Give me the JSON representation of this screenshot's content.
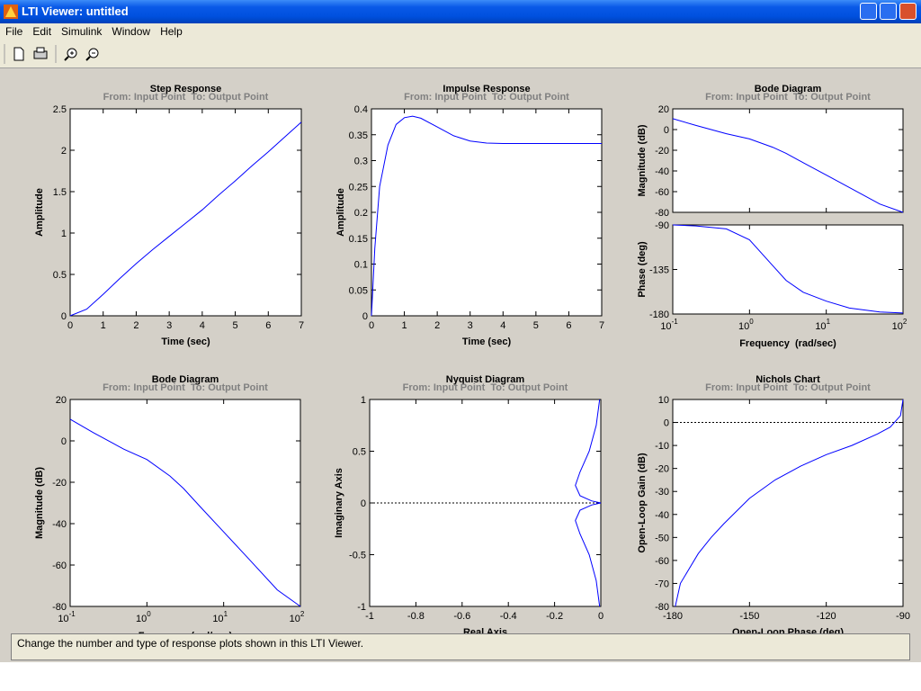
{
  "window": {
    "title": "LTI Viewer: untitled"
  },
  "menu": [
    "File",
    "Edit",
    "Simulink",
    "Window",
    "Help"
  ],
  "status": "Change the number and type of response plots shown in this LTI Viewer.",
  "chart_data": [
    {
      "type": "line",
      "title": "Step Response",
      "subtitle": "From: Input Point  To: Output Point",
      "xlabel": "Time (sec)",
      "ylabel": "Amplitude",
      "color": "#0000ff",
      "x": [
        0,
        0.5,
        1,
        1.5,
        2,
        2.5,
        3,
        3.5,
        4,
        4.5,
        5,
        5.5,
        6,
        6.5,
        7
      ],
      "values": [
        0,
        0.08,
        0.26,
        0.45,
        0.63,
        0.8,
        0.96,
        1.12,
        1.28,
        1.46,
        1.63,
        1.81,
        1.98,
        2.16,
        2.34
      ],
      "xlim": [
        0,
        7
      ],
      "ylim": [
        0,
        2.5
      ],
      "xticks": [
        0,
        1,
        2,
        3,
        4,
        5,
        6,
        7
      ],
      "yticks": [
        0,
        0.5,
        1,
        1.5,
        2,
        2.5
      ]
    },
    {
      "type": "line",
      "title": "Impulse Response",
      "subtitle": "From: Input Point  To: Output Point",
      "xlabel": "Time (sec)",
      "ylabel": "Amplitude",
      "color": "#0000ff",
      "zero_line": true,
      "x": [
        0,
        0.1,
        0.25,
        0.5,
        0.75,
        1,
        1.25,
        1.5,
        2,
        2.5,
        3,
        3.5,
        4,
        5,
        6,
        7
      ],
      "values": [
        0,
        0.13,
        0.25,
        0.33,
        0.37,
        0.383,
        0.386,
        0.382,
        0.365,
        0.348,
        0.338,
        0.334,
        0.333,
        0.333,
        0.333,
        0.333
      ],
      "xlim": [
        0,
        7
      ],
      "ylim": [
        0,
        0.4
      ],
      "xticks": [
        0,
        1,
        2,
        3,
        4,
        5,
        6,
        7
      ],
      "yticks": [
        0,
        0.05,
        0.1,
        0.15,
        0.2,
        0.25,
        0.3,
        0.35,
        0.4
      ]
    },
    {
      "type": "bode",
      "title": "Bode Diagram",
      "subtitle": "From: Input Point  To: Output Point",
      "xlabel": "Frequency  (rad/sec)",
      "color": "#0000ff",
      "xscale": "log",
      "x": [
        0.1,
        0.2,
        0.5,
        1,
        2,
        3,
        5,
        10,
        20,
        50,
        100
      ],
      "xlim": [
        0.1,
        100
      ],
      "xticks": [
        {
          "value": 0.1,
          "label": "10",
          "exponent": "-1"
        },
        {
          "value": 1,
          "label": "10",
          "exponent": "0"
        },
        {
          "value": 10,
          "label": "10",
          "exponent": "1"
        },
        {
          "value": 100,
          "label": "10",
          "exponent": "2"
        }
      ],
      "panels": [
        {
          "ylabel": "Magnitude (dB)",
          "ylim": [
            -80,
            20
          ],
          "yticks": [
            -80,
            -60,
            -40,
            -20,
            0,
            20
          ],
          "values": [
            10.5,
            4,
            -4,
            -9,
            -17,
            -23,
            -32,
            -44,
            -56,
            -72,
            -80
          ]
        },
        {
          "ylabel": "Phase (deg)",
          "ylim": [
            -180,
            -90
          ],
          "yticks": [
            -180,
            -135,
            -90
          ],
          "values": [
            -90,
            -91,
            -94,
            -105,
            -131,
            -146,
            -158,
            -167,
            -174,
            -178,
            -179
          ]
        }
      ]
    },
    {
      "type": "line",
      "title": "Bode Diagram",
      "subtitle": "From: Input Point  To: Output Point",
      "xlabel": "Frequency (rad/sec)",
      "ylabel": "Magnitude (dB)",
      "color": "#0000ff",
      "xscale": "log",
      "x": [
        0.1,
        0.2,
        0.5,
        1,
        2,
        3,
        5,
        10,
        20,
        50,
        100
      ],
      "values": [
        10.5,
        4,
        -4,
        -9,
        -17,
        -23,
        -32,
        -44,
        -56,
        -72,
        -80
      ],
      "xlim": [
        0.1,
        100
      ],
      "ylim": [
        -80,
        20
      ],
      "xticks": [
        {
          "value": 0.1,
          "label": "10",
          "exponent": "-1"
        },
        {
          "value": 1,
          "label": "10",
          "exponent": "0"
        },
        {
          "value": 10,
          "label": "10",
          "exponent": "1"
        },
        {
          "value": 100,
          "label": "10",
          "exponent": "2"
        }
      ],
      "yticks": [
        -80,
        -60,
        -40,
        -20,
        0,
        20
      ]
    },
    {
      "type": "line",
      "title": "Nyquist Diagram",
      "subtitle": "From: Input Point  To: Output Point",
      "xlabel": "Real Axis",
      "ylabel": "Imaginary Axis",
      "color": "#0000ff",
      "zero_line": true,
      "x": [
        -0.005,
        -0.02,
        -0.05,
        -0.09,
        -0.11,
        -0.09,
        -0.04,
        0,
        -0.04,
        -0.09,
        -0.11,
        -0.09,
        -0.05,
        -0.02,
        -0.005
      ],
      "values": [
        -1,
        -0.75,
        -0.5,
        -0.3,
        -0.17,
        -0.07,
        -0.02,
        0,
        0.02,
        0.07,
        0.17,
        0.3,
        0.5,
        0.75,
        1
      ],
      "xlim": [
        -1,
        0
      ],
      "ylim": [
        -1,
        1
      ],
      "xticks": [
        -1,
        -0.8,
        -0.6,
        -0.4,
        -0.2,
        0
      ],
      "yticks": [
        -1,
        -0.5,
        0,
        0.5,
        1
      ]
    },
    {
      "type": "line",
      "title": "Nichols Chart",
      "subtitle": "From: Input Point  To: Output Point",
      "xlabel": "Open-Loop Phase (deg)",
      "ylabel": "Open-Loop Gain (dB)",
      "color": "#0000ff",
      "zero_line": true,
      "x": [
        -179,
        -177,
        -170,
        -165,
        -160,
        -150,
        -140,
        -130,
        -120,
        -110,
        -100,
        -95,
        -91,
        -90
      ],
      "values": [
        -80,
        -70,
        -57,
        -50,
        -44,
        -33,
        -25,
        -19,
        -14,
        -10,
        -5,
        -2,
        3,
        10
      ],
      "xlim": [
        -180,
        -90
      ],
      "ylim": [
        -80,
        10
      ],
      "xticks": [
        -180,
        -150,
        -120,
        -90
      ],
      "yticks": [
        -80,
        -70,
        -60,
        -50,
        -40,
        -30,
        -20,
        -10,
        0,
        10
      ]
    }
  ]
}
